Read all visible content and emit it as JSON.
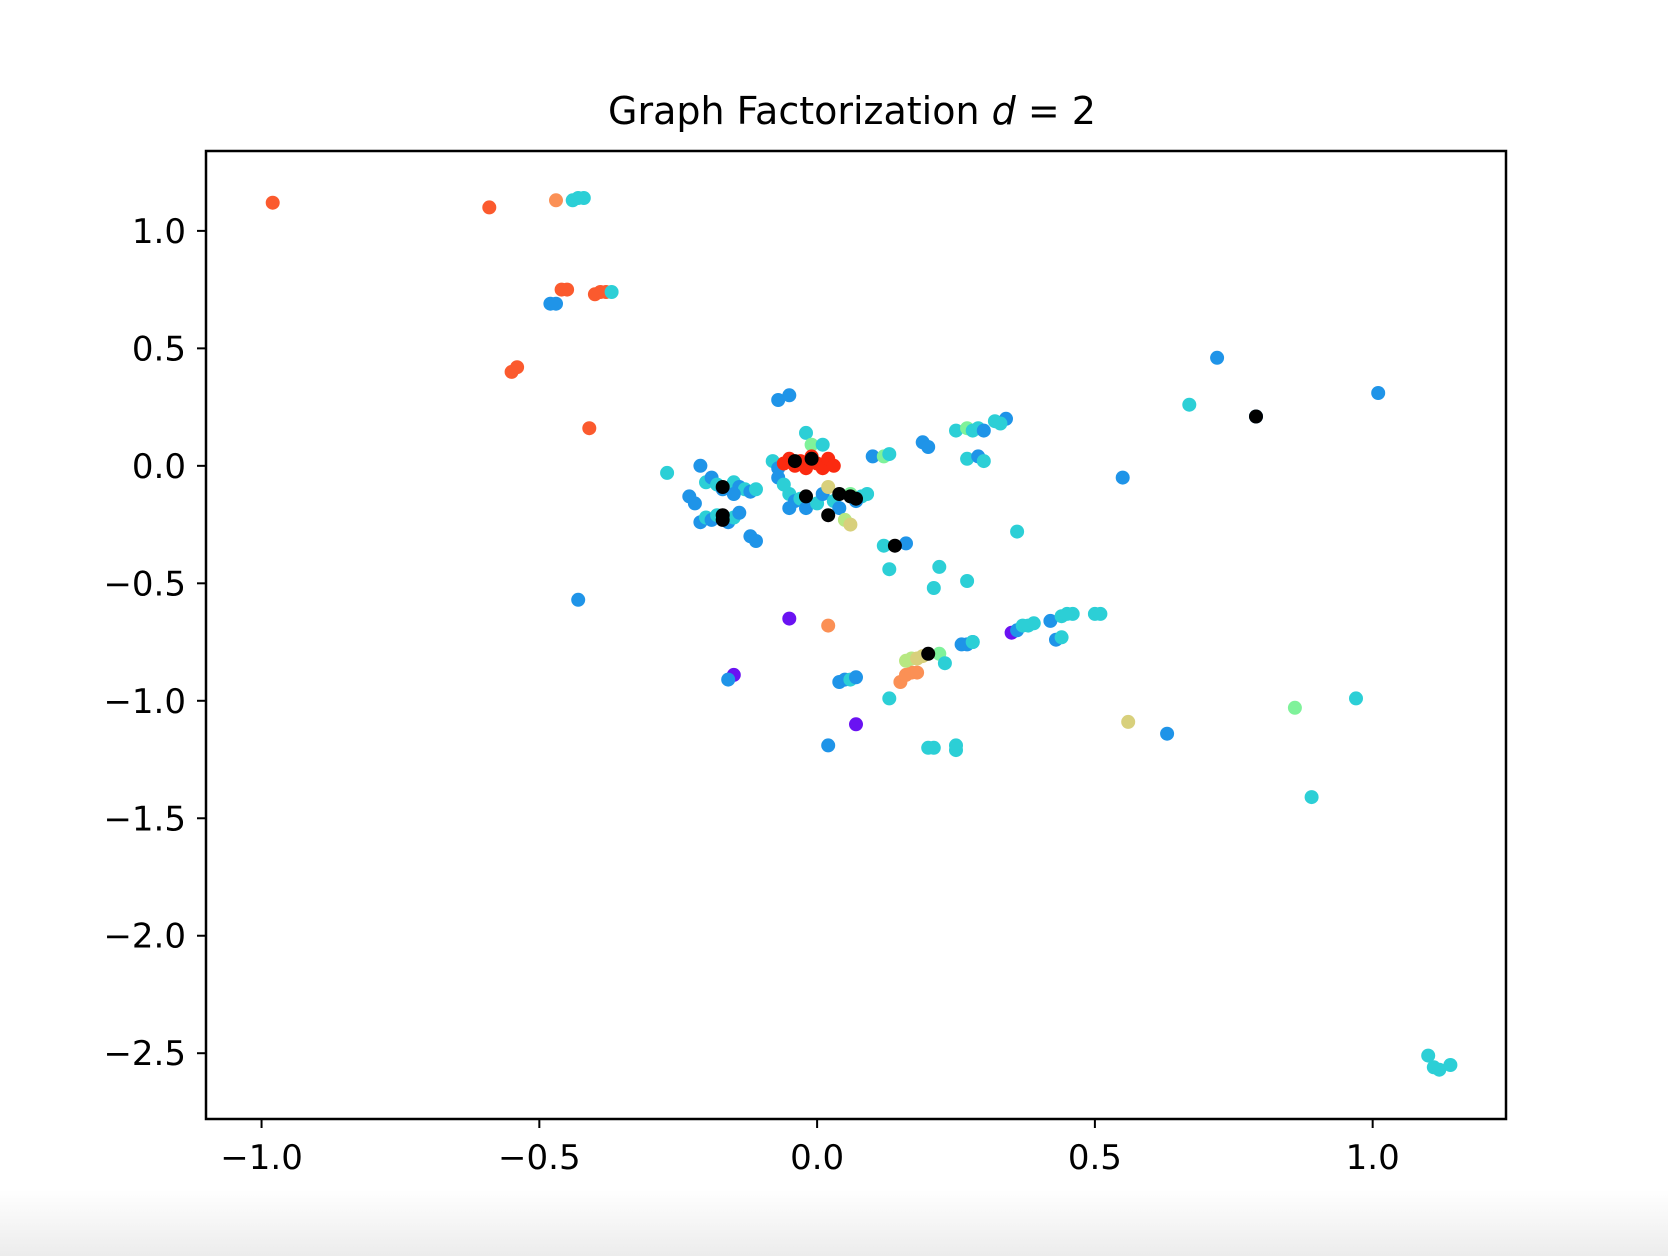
{
  "chart_data": {
    "type": "scatter",
    "title": {
      "prefix": "Graph Factorization ",
      "variable": "d",
      "suffix": " = 2"
    },
    "xlabel": "",
    "ylabel": "",
    "xlim": [
      -1.1,
      1.24
    ],
    "ylim": [
      -2.78,
      1.34
    ],
    "xticks": [
      {
        "value": -1.0,
        "label": "−1.0"
      },
      {
        "value": -0.5,
        "label": "−0.5"
      },
      {
        "value": 0.0,
        "label": "0.0"
      },
      {
        "value": 0.5,
        "label": "0.5"
      },
      {
        "value": 1.0,
        "label": "1.0"
      }
    ],
    "yticks": [
      {
        "value": 1.0,
        "label": "1.0"
      },
      {
        "value": 0.5,
        "label": "0.5"
      },
      {
        "value": 0.0,
        "label": "0.0"
      },
      {
        "value": -0.5,
        "label": "−0.5"
      },
      {
        "value": -1.0,
        "label": "−1.0"
      },
      {
        "value": -1.5,
        "label": "−1.5"
      },
      {
        "value": -2.0,
        "label": "−2.0"
      },
      {
        "value": -2.5,
        "label": "−2.5"
      }
    ],
    "grid": false,
    "legend": false,
    "colormap": "rainbow",
    "points": [
      {
        "x": -0.98,
        "y": 1.12,
        "c": "#fb5a2e"
      },
      {
        "x": -0.59,
        "y": 1.1,
        "c": "#fb5a2e"
      },
      {
        "x": -0.47,
        "y": 1.13,
        "c": "#fb9055"
      },
      {
        "x": -0.44,
        "y": 1.13,
        "c": "#2ccfd6"
      },
      {
        "x": -0.43,
        "y": 1.14,
        "c": "#2ccfd6"
      },
      {
        "x": -0.42,
        "y": 1.14,
        "c": "#2ccfd6"
      },
      {
        "x": -0.46,
        "y": 0.75,
        "c": "#fb5a2e"
      },
      {
        "x": -0.45,
        "y": 0.75,
        "c": "#fb5a2e"
      },
      {
        "x": -0.4,
        "y": 0.73,
        "c": "#fb5a2e"
      },
      {
        "x": -0.39,
        "y": 0.74,
        "c": "#fb5a2e"
      },
      {
        "x": -0.38,
        "y": 0.74,
        "c": "#fb5a2e"
      },
      {
        "x": -0.37,
        "y": 0.74,
        "c": "#2ccfd6"
      },
      {
        "x": -0.48,
        "y": 0.69,
        "c": "#1f94e8"
      },
      {
        "x": -0.47,
        "y": 0.69,
        "c": "#1f94e8"
      },
      {
        "x": -0.55,
        "y": 0.4,
        "c": "#fb5a2e"
      },
      {
        "x": -0.54,
        "y": 0.42,
        "c": "#fb5a2e"
      },
      {
        "x": -0.41,
        "y": 0.16,
        "c": "#fb5a2e"
      },
      {
        "x": -0.43,
        "y": -0.57,
        "c": "#1f94e8"
      },
      {
        "x": -0.27,
        "y": -0.03,
        "c": "#2ccfd6"
      },
      {
        "x": -0.21,
        "y": 0.0,
        "c": "#1f94e8"
      },
      {
        "x": -0.23,
        "y": -0.13,
        "c": "#1f94e8"
      },
      {
        "x": -0.22,
        "y": -0.16,
        "c": "#1f94e8"
      },
      {
        "x": -0.2,
        "y": -0.07,
        "c": "#2ccfd6"
      },
      {
        "x": -0.19,
        "y": -0.05,
        "c": "#1f94e8"
      },
      {
        "x": -0.18,
        "y": -0.08,
        "c": "#2ccfd6"
      },
      {
        "x": -0.17,
        "y": -0.1,
        "c": "#1f94e8"
      },
      {
        "x": -0.15,
        "y": -0.07,
        "c": "#2ccfd6"
      },
      {
        "x": -0.14,
        "y": -0.09,
        "c": "#1f94e8"
      },
      {
        "x": -0.13,
        "y": -0.1,
        "c": "#2ccfd6"
      },
      {
        "x": -0.12,
        "y": -0.11,
        "c": "#1f94e8"
      },
      {
        "x": -0.11,
        "y": -0.1,
        "c": "#2ccfd6"
      },
      {
        "x": -0.21,
        "y": -0.24,
        "c": "#1f94e8"
      },
      {
        "x": -0.2,
        "y": -0.22,
        "c": "#2ccfd6"
      },
      {
        "x": -0.19,
        "y": -0.23,
        "c": "#1f94e8"
      },
      {
        "x": -0.18,
        "y": -0.21,
        "c": "#2ccfd6"
      },
      {
        "x": -0.16,
        "y": -0.24,
        "c": "#1f94e8"
      },
      {
        "x": -0.15,
        "y": -0.22,
        "c": "#2ccfd6"
      },
      {
        "x": -0.14,
        "y": -0.2,
        "c": "#1f94e8"
      },
      {
        "x": -0.15,
        "y": -0.12,
        "c": "#1f94e8"
      },
      {
        "x": -0.12,
        "y": -0.3,
        "c": "#1f94e8"
      },
      {
        "x": -0.11,
        "y": -0.32,
        "c": "#1f94e8"
      },
      {
        "x": -0.17,
        "y": -0.09,
        "c": "#000000"
      },
      {
        "x": -0.17,
        "y": -0.21,
        "c": "#000000"
      },
      {
        "x": -0.17,
        "y": -0.23,
        "c": "#000000"
      },
      {
        "x": -0.07,
        "y": 0.28,
        "c": "#1f94e8"
      },
      {
        "x": -0.05,
        "y": 0.3,
        "c": "#1f94e8"
      },
      {
        "x": -0.02,
        "y": 0.14,
        "c": "#2ccfd6"
      },
      {
        "x": -0.01,
        "y": 0.09,
        "c": "#7ff29a"
      },
      {
        "x": 0.01,
        "y": 0.09,
        "c": "#2ccfd6"
      },
      {
        "x": -0.08,
        "y": 0.02,
        "c": "#2ccfd6"
      },
      {
        "x": -0.07,
        "y": -0.01,
        "c": "#1f94e8"
      },
      {
        "x": -0.06,
        "y": 0.01,
        "c": "#fb2a10"
      },
      {
        "x": -0.05,
        "y": 0.03,
        "c": "#fb2a10"
      },
      {
        "x": -0.04,
        "y": 0.0,
        "c": "#fb2a10"
      },
      {
        "x": -0.03,
        "y": 0.02,
        "c": "#fb2a10"
      },
      {
        "x": -0.02,
        "y": -0.01,
        "c": "#fb2a10"
      },
      {
        "x": -0.01,
        "y": 0.04,
        "c": "#fb2a10"
      },
      {
        "x": 0.0,
        "y": 0.01,
        "c": "#fb2a10"
      },
      {
        "x": 0.01,
        "y": -0.01,
        "c": "#fb2a10"
      },
      {
        "x": 0.02,
        "y": 0.03,
        "c": "#fb2a10"
      },
      {
        "x": 0.03,
        "y": 0.0,
        "c": "#fb2a10"
      },
      {
        "x": -0.04,
        "y": 0.02,
        "c": "#000000"
      },
      {
        "x": -0.01,
        "y": 0.03,
        "c": "#000000"
      },
      {
        "x": -0.07,
        "y": -0.05,
        "c": "#1f94e8"
      },
      {
        "x": -0.06,
        "y": -0.08,
        "c": "#2ccfd6"
      },
      {
        "x": -0.05,
        "y": -0.12,
        "c": "#2ccfd6"
      },
      {
        "x": -0.04,
        "y": -0.15,
        "c": "#1f94e8"
      },
      {
        "x": -0.03,
        "y": -0.14,
        "c": "#2ccfd6"
      },
      {
        "x": -0.02,
        "y": -0.18,
        "c": "#1f94e8"
      },
      {
        "x": 0.0,
        "y": -0.16,
        "c": "#2ccfd6"
      },
      {
        "x": 0.01,
        "y": -0.12,
        "c": "#1f94e8"
      },
      {
        "x": 0.03,
        "y": -0.15,
        "c": "#2ccfd6"
      },
      {
        "x": 0.04,
        "y": -0.18,
        "c": "#1f94e8"
      },
      {
        "x": -0.05,
        "y": -0.18,
        "c": "#1f94e8"
      },
      {
        "x": 0.02,
        "y": -0.09,
        "c": "#d8d07c"
      },
      {
        "x": 0.05,
        "y": -0.23,
        "c": "#b7e882"
      },
      {
        "x": 0.06,
        "y": -0.25,
        "c": "#d8d07c"
      },
      {
        "x": 0.06,
        "y": -0.12,
        "c": "#7ff29a"
      },
      {
        "x": 0.08,
        "y": -0.13,
        "c": "#2ccfd6"
      },
      {
        "x": 0.07,
        "y": -0.15,
        "c": "#1f94e8"
      },
      {
        "x": 0.09,
        "y": -0.12,
        "c": "#2ccfd6"
      },
      {
        "x": -0.02,
        "y": -0.13,
        "c": "#000000"
      },
      {
        "x": 0.02,
        "y": -0.21,
        "c": "#000000"
      },
      {
        "x": 0.04,
        "y": -0.12,
        "c": "#000000"
      },
      {
        "x": 0.06,
        "y": -0.13,
        "c": "#000000"
      },
      {
        "x": 0.07,
        "y": -0.14,
        "c": "#000000"
      },
      {
        "x": 0.1,
        "y": 0.04,
        "c": "#1f94e8"
      },
      {
        "x": 0.12,
        "y": 0.04,
        "c": "#7ff29a"
      },
      {
        "x": 0.13,
        "y": 0.05,
        "c": "#2ccfd6"
      },
      {
        "x": 0.19,
        "y": 0.1,
        "c": "#1f94e8"
      },
      {
        "x": 0.2,
        "y": 0.08,
        "c": "#1f94e8"
      },
      {
        "x": 0.12,
        "y": -0.34,
        "c": "#2ccfd6"
      },
      {
        "x": 0.16,
        "y": -0.33,
        "c": "#1f94e8"
      },
      {
        "x": 0.14,
        "y": -0.34,
        "c": "#000000"
      },
      {
        "x": 0.13,
        "y": -0.44,
        "c": "#2ccfd6"
      },
      {
        "x": 0.22,
        "y": -0.43,
        "c": "#2ccfd6"
      },
      {
        "x": 0.21,
        "y": -0.52,
        "c": "#2ccfd6"
      },
      {
        "x": 0.27,
        "y": -0.49,
        "c": "#2ccfd6"
      },
      {
        "x": 0.25,
        "y": 0.15,
        "c": "#2ccfd6"
      },
      {
        "x": 0.27,
        "y": 0.16,
        "c": "#7ff29a"
      },
      {
        "x": 0.28,
        "y": 0.15,
        "c": "#2ccfd6"
      },
      {
        "x": 0.29,
        "y": 0.16,
        "c": "#2ccfd6"
      },
      {
        "x": 0.3,
        "y": 0.15,
        "c": "#1f94e8"
      },
      {
        "x": 0.32,
        "y": 0.19,
        "c": "#2ccfd6"
      },
      {
        "x": 0.34,
        "y": 0.2,
        "c": "#1f94e8"
      },
      {
        "x": 0.33,
        "y": 0.18,
        "c": "#2ccfd6"
      },
      {
        "x": 0.27,
        "y": 0.03,
        "c": "#2ccfd6"
      },
      {
        "x": 0.29,
        "y": 0.04,
        "c": "#1f94e8"
      },
      {
        "x": 0.3,
        "y": 0.02,
        "c": "#2ccfd6"
      },
      {
        "x": 0.36,
        "y": -0.28,
        "c": "#2ccfd6"
      },
      {
        "x": 0.55,
        "y": -0.05,
        "c": "#1f94e8"
      },
      {
        "x": 0.72,
        "y": 0.46,
        "c": "#1f94e8"
      },
      {
        "x": 0.67,
        "y": 0.26,
        "c": "#2ccfd6"
      },
      {
        "x": 1.01,
        "y": 0.31,
        "c": "#1f94e8"
      },
      {
        "x": 0.79,
        "y": 0.21,
        "c": "#1f94e8"
      },
      {
        "x": 0.79,
        "y": 0.21,
        "c": "#000000"
      },
      {
        "x": -0.05,
        "y": -0.65,
        "c": "#6a12f2"
      },
      {
        "x": 0.02,
        "y": -0.68,
        "c": "#fb9055"
      },
      {
        "x": -0.15,
        "y": -0.89,
        "c": "#6a12f2"
      },
      {
        "x": -0.16,
        "y": -0.91,
        "c": "#1f94e8"
      },
      {
        "x": 0.07,
        "y": -1.1,
        "c": "#6a12f2"
      },
      {
        "x": 0.02,
        "y": -1.19,
        "c": "#1f94e8"
      },
      {
        "x": 0.04,
        "y": -0.92,
        "c": "#1f94e8"
      },
      {
        "x": 0.05,
        "y": -0.91,
        "c": "#1f94e8"
      },
      {
        "x": 0.06,
        "y": -0.91,
        "c": "#2ccfd6"
      },
      {
        "x": 0.07,
        "y": -0.9,
        "c": "#1f94e8"
      },
      {
        "x": 0.13,
        "y": -0.99,
        "c": "#2ccfd6"
      },
      {
        "x": 0.15,
        "y": -0.92,
        "c": "#fb9055"
      },
      {
        "x": 0.16,
        "y": -0.89,
        "c": "#fb9055"
      },
      {
        "x": 0.17,
        "y": -0.88,
        "c": "#fb9055"
      },
      {
        "x": 0.18,
        "y": -0.88,
        "c": "#fb9055"
      },
      {
        "x": 0.16,
        "y": -0.83,
        "c": "#b7e882"
      },
      {
        "x": 0.17,
        "y": -0.82,
        "c": "#b7e882"
      },
      {
        "x": 0.18,
        "y": -0.82,
        "c": "#d8d07c"
      },
      {
        "x": 0.19,
        "y": -0.81,
        "c": "#d8d07c"
      },
      {
        "x": 0.22,
        "y": -0.8,
        "c": "#7ff29a"
      },
      {
        "x": 0.23,
        "y": -0.84,
        "c": "#2ccfd6"
      },
      {
        "x": 0.2,
        "y": -0.8,
        "c": "#000000"
      },
      {
        "x": 0.2,
        "y": -1.2,
        "c": "#2ccfd6"
      },
      {
        "x": 0.21,
        "y": -1.2,
        "c": "#2ccfd6"
      },
      {
        "x": 0.25,
        "y": -1.21,
        "c": "#2ccfd6"
      },
      {
        "x": 0.25,
        "y": -1.19,
        "c": "#2ccfd6"
      },
      {
        "x": 0.26,
        "y": -0.76,
        "c": "#1f94e8"
      },
      {
        "x": 0.27,
        "y": -0.76,
        "c": "#1f94e8"
      },
      {
        "x": 0.28,
        "y": -0.75,
        "c": "#1f94e8"
      },
      {
        "x": 0.28,
        "y": -0.75,
        "c": "#2ccfd6"
      },
      {
        "x": 0.35,
        "y": -0.71,
        "c": "#6a12f2"
      },
      {
        "x": 0.36,
        "y": -0.7,
        "c": "#1f94e8"
      },
      {
        "x": 0.37,
        "y": -0.68,
        "c": "#2ccfd6"
      },
      {
        "x": 0.38,
        "y": -0.68,
        "c": "#2ccfd6"
      },
      {
        "x": 0.39,
        "y": -0.67,
        "c": "#2ccfd6"
      },
      {
        "x": 0.42,
        "y": -0.66,
        "c": "#1f94e8"
      },
      {
        "x": 0.44,
        "y": -0.64,
        "c": "#2ccfd6"
      },
      {
        "x": 0.45,
        "y": -0.63,
        "c": "#2ccfd6"
      },
      {
        "x": 0.46,
        "y": -0.63,
        "c": "#2ccfd6"
      },
      {
        "x": 0.43,
        "y": -0.74,
        "c": "#1f94e8"
      },
      {
        "x": 0.44,
        "y": -0.73,
        "c": "#2ccfd6"
      },
      {
        "x": 0.5,
        "y": -0.63,
        "c": "#2ccfd6"
      },
      {
        "x": 0.51,
        "y": -0.63,
        "c": "#2ccfd6"
      },
      {
        "x": 0.56,
        "y": -1.09,
        "c": "#d8d07c"
      },
      {
        "x": 0.63,
        "y": -1.14,
        "c": "#1f94e8"
      },
      {
        "x": 0.86,
        "y": -1.03,
        "c": "#7ff29a"
      },
      {
        "x": 0.97,
        "y": -0.99,
        "c": "#2ccfd6"
      },
      {
        "x": 0.89,
        "y": -1.41,
        "c": "#2ccfd6"
      },
      {
        "x": 1.1,
        "y": -2.51,
        "c": "#2ccfd6"
      },
      {
        "x": 1.11,
        "y": -2.56,
        "c": "#2ccfd6"
      },
      {
        "x": 1.12,
        "y": -2.57,
        "c": "#2ccfd6"
      },
      {
        "x": 1.14,
        "y": -2.55,
        "c": "#2ccfd6"
      }
    ]
  }
}
